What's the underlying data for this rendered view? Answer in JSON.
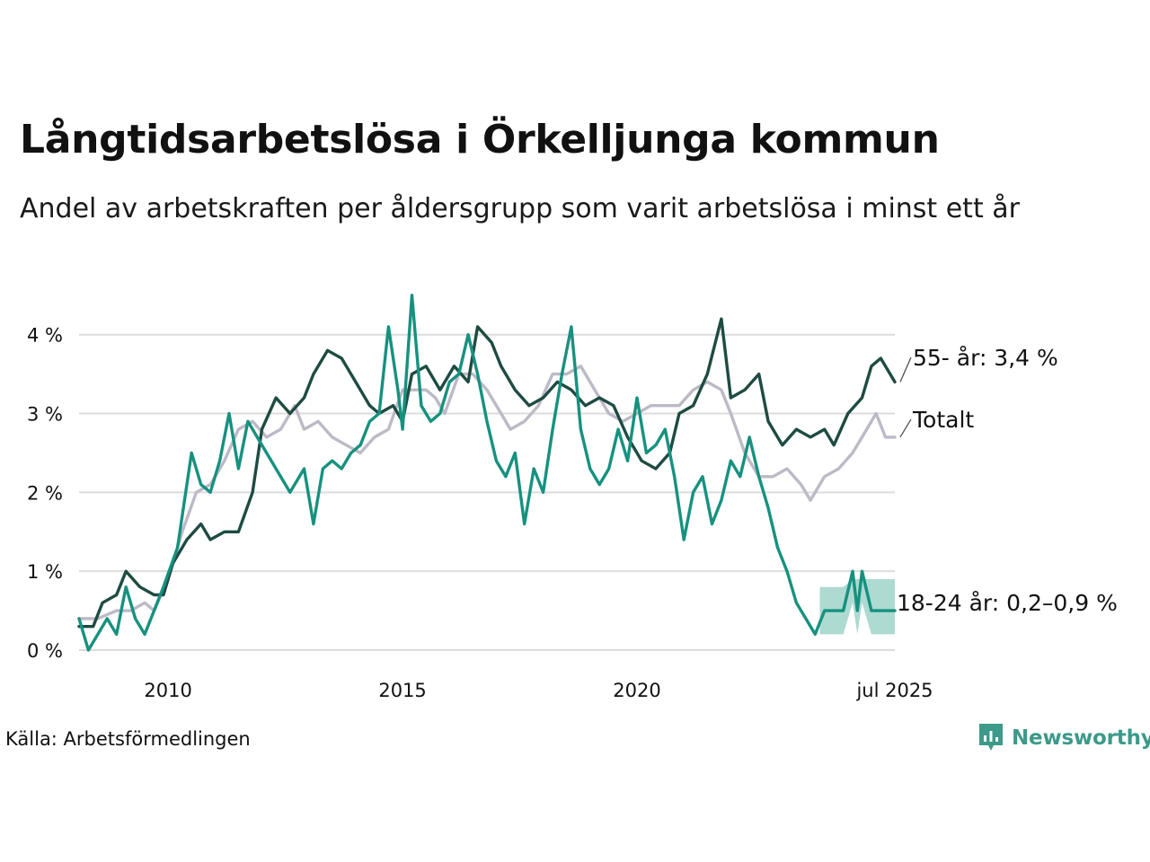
{
  "title": "Långtidsarbetslösa i Örkelljunga kommun",
  "subtitle": "Andel av arbetskraften per åldersgrupp som varit arbetslösa i minst ett år",
  "source": "Källa: Arbetsförmedlingen",
  "brand": {
    "name": "Newsworthy",
    "color": "#3d9a8a"
  },
  "chart_data": {
    "type": "line",
    "xlim": [
      2008.1,
      2025.5
    ],
    "ylim": [
      0,
      4.6
    ],
    "x_ticks": [
      {
        "value": 2010,
        "label": "2010"
      },
      {
        "value": 2015,
        "label": "2015"
      },
      {
        "value": 2020,
        "label": "2020"
      },
      {
        "value": 2025.5,
        "label": "jul 2025"
      }
    ],
    "y_ticks": [
      {
        "value": 0,
        "label": "0 %"
      },
      {
        "value": 1,
        "label": "1 %"
      },
      {
        "value": 2,
        "label": "2 %"
      },
      {
        "value": 3,
        "label": "3 %"
      },
      {
        "value": 4,
        "label": "4 %"
      }
    ],
    "grid": true,
    "series": [
      {
        "label": "Totalt",
        "color": "#bdb9c6",
        "points": [
          [
            2008.1,
            0.4
          ],
          [
            2008.5,
            0.4
          ],
          [
            2008.9,
            0.5
          ],
          [
            2009.2,
            0.5
          ],
          [
            2009.5,
            0.6
          ],
          [
            2009.7,
            0.5
          ],
          [
            2010.0,
            0.9
          ],
          [
            2010.3,
            1.5
          ],
          [
            2010.6,
            2.0
          ],
          [
            2010.9,
            2.1
          ],
          [
            2011.2,
            2.4
          ],
          [
            2011.5,
            2.8
          ],
          [
            2011.8,
            2.9
          ],
          [
            2012.1,
            2.7
          ],
          [
            2012.4,
            2.8
          ],
          [
            2012.7,
            3.1
          ],
          [
            2012.9,
            2.8
          ],
          [
            2013.2,
            2.9
          ],
          [
            2013.5,
            2.7
          ],
          [
            2013.8,
            2.6
          ],
          [
            2014.1,
            2.5
          ],
          [
            2014.4,
            2.7
          ],
          [
            2014.7,
            2.8
          ],
          [
            2015.0,
            3.3
          ],
          [
            2015.3,
            3.3
          ],
          [
            2015.5,
            3.3
          ],
          [
            2015.7,
            3.2
          ],
          [
            2015.9,
            3.0
          ],
          [
            2016.2,
            3.5
          ],
          [
            2016.5,
            3.5
          ],
          [
            2016.8,
            3.3
          ],
          [
            2017.1,
            3.0
          ],
          [
            2017.3,
            2.8
          ],
          [
            2017.6,
            2.9
          ],
          [
            2017.9,
            3.1
          ],
          [
            2018.2,
            3.5
          ],
          [
            2018.5,
            3.5
          ],
          [
            2018.8,
            3.6
          ],
          [
            2019.1,
            3.3
          ],
          [
            2019.4,
            3.0
          ],
          [
            2019.7,
            2.9
          ],
          [
            2020.0,
            3.0
          ],
          [
            2020.3,
            3.1
          ],
          [
            2020.6,
            3.1
          ],
          [
            2020.9,
            3.1
          ],
          [
            2021.2,
            3.3
          ],
          [
            2021.5,
            3.4
          ],
          [
            2021.8,
            3.3
          ],
          [
            2022.0,
            3.0
          ],
          [
            2022.3,
            2.5
          ],
          [
            2022.6,
            2.2
          ],
          [
            2022.9,
            2.2
          ],
          [
            2023.2,
            2.3
          ],
          [
            2023.5,
            2.1
          ],
          [
            2023.7,
            1.9
          ],
          [
            2024.0,
            2.2
          ],
          [
            2024.3,
            2.3
          ],
          [
            2024.6,
            2.5
          ],
          [
            2024.9,
            2.8
          ],
          [
            2025.1,
            3.0
          ],
          [
            2025.3,
            2.7
          ],
          [
            2025.5,
            2.7
          ]
        ]
      },
      {
        "label": "55- år: 3,4 %",
        "color": "#1e4b42",
        "points": [
          [
            2008.1,
            0.3
          ],
          [
            2008.4,
            0.3
          ],
          [
            2008.6,
            0.6
          ],
          [
            2008.9,
            0.7
          ],
          [
            2009.1,
            1.0
          ],
          [
            2009.4,
            0.8
          ],
          [
            2009.7,
            0.7
          ],
          [
            2009.9,
            0.7
          ],
          [
            2010.1,
            1.1
          ],
          [
            2010.4,
            1.4
          ],
          [
            2010.7,
            1.6
          ],
          [
            2010.9,
            1.4
          ],
          [
            2011.2,
            1.5
          ],
          [
            2011.5,
            1.5
          ],
          [
            2011.8,
            2.0
          ],
          [
            2012.0,
            2.8
          ],
          [
            2012.3,
            3.2
          ],
          [
            2012.6,
            3.0
          ],
          [
            2012.9,
            3.2
          ],
          [
            2013.1,
            3.5
          ],
          [
            2013.4,
            3.8
          ],
          [
            2013.7,
            3.7
          ],
          [
            2014.0,
            3.4
          ],
          [
            2014.3,
            3.1
          ],
          [
            2014.5,
            3.0
          ],
          [
            2014.8,
            3.1
          ],
          [
            2015.0,
            2.9
          ],
          [
            2015.2,
            3.5
          ],
          [
            2015.5,
            3.6
          ],
          [
            2015.8,
            3.3
          ],
          [
            2016.1,
            3.6
          ],
          [
            2016.4,
            3.4
          ],
          [
            2016.6,
            4.1
          ],
          [
            2016.9,
            3.9
          ],
          [
            2017.1,
            3.6
          ],
          [
            2017.4,
            3.3
          ],
          [
            2017.7,
            3.1
          ],
          [
            2018.0,
            3.2
          ],
          [
            2018.3,
            3.4
          ],
          [
            2018.6,
            3.3
          ],
          [
            2018.9,
            3.1
          ],
          [
            2019.2,
            3.2
          ],
          [
            2019.5,
            3.1
          ],
          [
            2019.8,
            2.7
          ],
          [
            2020.1,
            2.4
          ],
          [
            2020.4,
            2.3
          ],
          [
            2020.7,
            2.5
          ],
          [
            2020.9,
            3.0
          ],
          [
            2021.2,
            3.1
          ],
          [
            2021.5,
            3.5
          ],
          [
            2021.8,
            4.2
          ],
          [
            2022.0,
            3.2
          ],
          [
            2022.3,
            3.3
          ],
          [
            2022.6,
            3.5
          ],
          [
            2022.8,
            2.9
          ],
          [
            2023.1,
            2.6
          ],
          [
            2023.4,
            2.8
          ],
          [
            2023.7,
            2.7
          ],
          [
            2024.0,
            2.8
          ],
          [
            2024.2,
            2.6
          ],
          [
            2024.5,
            3.0
          ],
          [
            2024.8,
            3.2
          ],
          [
            2025.0,
            3.6
          ],
          [
            2025.2,
            3.7
          ],
          [
            2025.4,
            3.5
          ],
          [
            2025.5,
            3.4
          ]
        ]
      },
      {
        "label": "18-24 år: 0,2–0,9 %",
        "color": "#17917f",
        "points": [
          [
            2008.1,
            0.4
          ],
          [
            2008.3,
            0.0
          ],
          [
            2008.5,
            0.2
          ],
          [
            2008.7,
            0.4
          ],
          [
            2008.9,
            0.2
          ],
          [
            2009.1,
            0.8
          ],
          [
            2009.3,
            0.4
          ],
          [
            2009.5,
            0.2
          ],
          [
            2009.7,
            0.5
          ],
          [
            2009.9,
            0.8
          ],
          [
            2010.2,
            1.3
          ],
          [
            2010.5,
            2.5
          ],
          [
            2010.7,
            2.1
          ],
          [
            2010.9,
            2.0
          ],
          [
            2011.1,
            2.4
          ],
          [
            2011.3,
            3.0
          ],
          [
            2011.5,
            2.3
          ],
          [
            2011.7,
            2.9
          ],
          [
            2011.9,
            2.7
          ],
          [
            2012.1,
            2.5
          ],
          [
            2012.4,
            2.2
          ],
          [
            2012.6,
            2.0
          ],
          [
            2012.9,
            2.3
          ],
          [
            2013.1,
            1.6
          ],
          [
            2013.3,
            2.3
          ],
          [
            2013.5,
            2.4
          ],
          [
            2013.7,
            2.3
          ],
          [
            2013.9,
            2.5
          ],
          [
            2014.1,
            2.6
          ],
          [
            2014.3,
            2.9
          ],
          [
            2014.5,
            3.0
          ],
          [
            2014.7,
            4.1
          ],
          [
            2014.9,
            3.3
          ],
          [
            2015.0,
            2.8
          ],
          [
            2015.2,
            4.5
          ],
          [
            2015.4,
            3.1
          ],
          [
            2015.6,
            2.9
          ],
          [
            2015.8,
            3.0
          ],
          [
            2016.0,
            3.4
          ],
          [
            2016.2,
            3.5
          ],
          [
            2016.4,
            4.0
          ],
          [
            2016.6,
            3.5
          ],
          [
            2016.8,
            2.9
          ],
          [
            2017.0,
            2.4
          ],
          [
            2017.2,
            2.2
          ],
          [
            2017.4,
            2.5
          ],
          [
            2017.6,
            1.6
          ],
          [
            2017.8,
            2.3
          ],
          [
            2018.0,
            2.0
          ],
          [
            2018.2,
            2.8
          ],
          [
            2018.4,
            3.5
          ],
          [
            2018.6,
            4.1
          ],
          [
            2018.8,
            2.8
          ],
          [
            2019.0,
            2.3
          ],
          [
            2019.2,
            2.1
          ],
          [
            2019.4,
            2.3
          ],
          [
            2019.6,
            2.8
          ],
          [
            2019.8,
            2.4
          ],
          [
            2020.0,
            3.2
          ],
          [
            2020.2,
            2.5
          ],
          [
            2020.4,
            2.6
          ],
          [
            2020.6,
            2.8
          ],
          [
            2020.8,
            2.2
          ],
          [
            2021.0,
            1.4
          ],
          [
            2021.2,
            2.0
          ],
          [
            2021.4,
            2.2
          ],
          [
            2021.6,
            1.6
          ],
          [
            2021.8,
            1.9
          ],
          [
            2022.0,
            2.4
          ],
          [
            2022.2,
            2.2
          ],
          [
            2022.4,
            2.7
          ],
          [
            2022.6,
            2.2
          ],
          [
            2022.8,
            1.8
          ],
          [
            2023.0,
            1.3
          ],
          [
            2023.2,
            1.0
          ],
          [
            2023.4,
            0.6
          ],
          [
            2023.6,
            0.4
          ],
          [
            2023.8,
            0.2
          ],
          [
            2024.0,
            0.5
          ],
          [
            2024.2,
            0.5
          ],
          [
            2024.4,
            0.5
          ],
          [
            2024.6,
            1.0
          ],
          [
            2024.7,
            0.5
          ],
          [
            2024.8,
            1.0
          ],
          [
            2025.0,
            0.5
          ],
          [
            2025.5,
            0.5
          ]
        ]
      }
    ],
    "uncertainty_band": {
      "series": "18-24 år: 0,2–0,9 %",
      "color": "#9fd3c9",
      "points": [
        [
          2023.9,
          0.2,
          0.8
        ],
        [
          2024.4,
          0.2,
          0.8
        ],
        [
          2024.6,
          0.6,
          0.9
        ],
        [
          2024.7,
          0.2,
          0.9
        ],
        [
          2024.8,
          0.6,
          0.9
        ],
        [
          2025.0,
          0.2,
          0.9
        ],
        [
          2025.5,
          0.2,
          0.9
        ]
      ]
    }
  }
}
